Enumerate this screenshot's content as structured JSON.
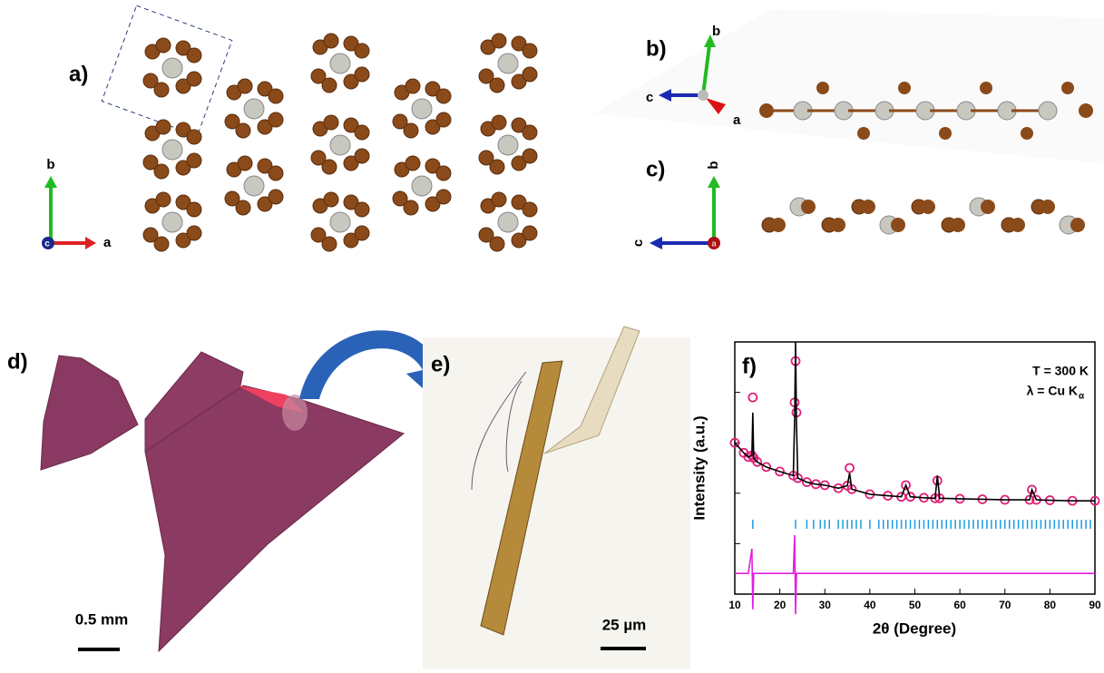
{
  "panels": {
    "a": "a)",
    "b": "b)",
    "c": "c)",
    "d": "d)",
    "e": "e)",
    "f": "f)"
  },
  "axes_a": {
    "b": "b",
    "a": "a",
    "c": "c"
  },
  "axes_b": {
    "b": "b",
    "c": "c",
    "a": "a"
  },
  "axes_c": {
    "b": "b",
    "c": "c",
    "a": "a"
  },
  "scale_d": "0.5 mm",
  "scale_e": "25 µm",
  "chart_data": {
    "type": "rietveld",
    "annotations": {
      "temperature": "T = 300 K",
      "radiation": "λ = Cu K",
      "radiation_sub": "α"
    },
    "xlabel": "2θ (Degree)",
    "ylabel": "Intensity (a.u.)",
    "xlim": [
      10,
      90
    ],
    "xticks": [
      10,
      20,
      30,
      40,
      50,
      60,
      70,
      80,
      90
    ],
    "ylim": [
      0,
      5
    ],
    "yticks": [
      0,
      1,
      2,
      3,
      4,
      5
    ],
    "x": [
      10,
      12,
      13,
      13.8,
      14,
      14.2,
      15,
      17,
      20,
      23,
      23.3,
      23.5,
      23.7,
      24,
      26,
      28,
      30,
      33,
      35,
      35.5,
      36,
      40,
      44,
      47,
      48,
      49,
      52,
      54.5,
      55,
      55.5,
      60,
      65,
      70,
      75.5,
      76,
      77,
      80,
      85,
      90
    ],
    "series": [
      {
        "marker": "circle",
        "color": "#e0207a",
        "values": [
          3.0,
          2.8,
          2.72,
          2.75,
          3.9,
          2.7,
          2.62,
          2.52,
          2.43,
          2.35,
          3.8,
          4.62,
          3.6,
          2.3,
          2.22,
          2.18,
          2.16,
          2.1,
          2.15,
          2.5,
          2.08,
          1.98,
          1.95,
          1.93,
          2.16,
          1.93,
          1.91,
          1.9,
          2.25,
          1.9,
          1.89,
          1.88,
          1.87,
          1.87,
          2.07,
          1.87,
          1.86,
          1.85,
          1.85
        ]
      },
      {
        "marker": "line",
        "color": "#000000",
        "values": [
          3.0,
          2.8,
          2.72,
          2.75,
          3.6,
          2.7,
          2.62,
          2.52,
          2.43,
          2.35,
          3.5,
          5.0,
          3.4,
          2.3,
          2.22,
          2.18,
          2.16,
          2.1,
          2.15,
          2.4,
          2.08,
          1.98,
          1.95,
          1.93,
          2.16,
          1.93,
          1.91,
          1.9,
          2.35,
          1.9,
          1.89,
          1.88,
          1.87,
          1.87,
          2.07,
          1.87,
          1.86,
          1.85,
          1.85
        ]
      },
      {
        "marker": "line",
        "color": "#e020e0",
        "values": [
          0.41,
          0.41,
          0.41,
          0.9,
          -0.3,
          0.41,
          0.41,
          0.41,
          0.41,
          0.41,
          1.17,
          -0.4,
          0.41,
          0.41,
          0.41,
          0.41,
          0.41,
          0.41,
          0.41,
          0.41,
          0.41,
          0.41,
          0.41,
          0.41,
          0.41,
          0.41,
          0.41,
          0.41,
          0.41,
          0.41,
          0.41,
          0.41,
          0.41,
          0.41,
          0.41,
          0.41,
          0.41,
          0.41,
          0.41
        ]
      }
    ],
    "bragg_color": "#1e9be0",
    "bragg_positions": [
      14,
      23.5,
      26,
      27.5,
      29,
      30,
      31,
      33,
      34,
      35,
      36,
      37,
      38,
      40,
      42,
      43,
      44,
      45,
      46,
      47,
      48,
      49,
      50,
      51,
      52,
      53,
      54,
      55,
      56,
      57,
      58,
      59,
      60,
      61,
      62,
      63,
      64,
      65,
      66,
      67,
      68,
      69,
      70,
      71,
      72,
      73,
      74,
      75,
      76,
      77,
      78,
      79,
      80,
      81,
      82,
      83,
      84,
      85,
      86,
      87,
      88,
      89
    ]
  }
}
